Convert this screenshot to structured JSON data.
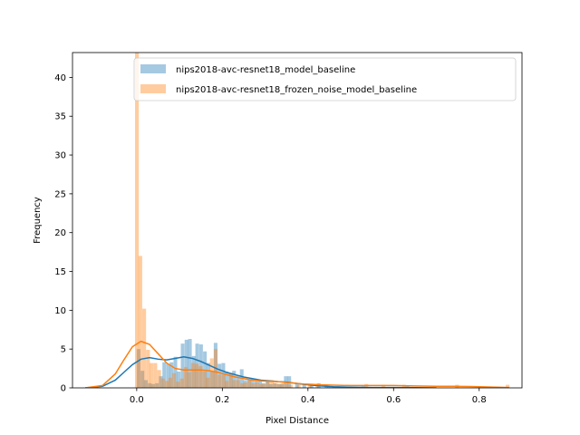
{
  "chart_data": {
    "type": "histogram",
    "xlabel": "Pixel Distance",
    "ylabel": "Frequency",
    "xlim": [
      -0.15,
      0.9
    ],
    "ylim": [
      0,
      43.2
    ],
    "xticks": [
      0.0,
      0.2,
      0.4,
      0.6,
      0.8
    ],
    "xtick_labels": [
      "0.0",
      "0.2",
      "0.4",
      "0.6",
      "0.8"
    ],
    "yticks": [
      0,
      5,
      10,
      15,
      20,
      25,
      30,
      35,
      40
    ],
    "ytick_labels": [
      "0",
      "5",
      "10",
      "15",
      "20",
      "25",
      "30",
      "35",
      "40"
    ],
    "grid": false,
    "legend_position": "top-right",
    "series": [
      {
        "name": "nips2018-avc-resnet18_model_baseline",
        "color": "#1f77b4",
        "bin_width": 0.0086,
        "bins": [
          [
            0.0,
            5.0
          ],
          [
            0.009,
            2.2
          ],
          [
            0.017,
            1.0
          ],
          [
            0.026,
            0.6
          ],
          [
            0.034,
            0.5
          ],
          [
            0.043,
            0.6
          ],
          [
            0.052,
            1.5
          ],
          [
            0.06,
            3.3
          ],
          [
            0.069,
            3.1
          ],
          [
            0.077,
            3.3
          ],
          [
            0.086,
            4.0
          ],
          [
            0.094,
            2.1
          ],
          [
            0.103,
            5.7
          ],
          [
            0.112,
            6.2
          ],
          [
            0.12,
            6.3
          ],
          [
            0.129,
            4.1
          ],
          [
            0.137,
            5.7
          ],
          [
            0.146,
            5.6
          ],
          [
            0.155,
            4.7
          ],
          [
            0.163,
            3.2
          ],
          [
            0.172,
            2.1
          ],
          [
            0.18,
            5.8
          ],
          [
            0.189,
            3.1
          ],
          [
            0.198,
            3.2
          ],
          [
            0.206,
            2.1
          ],
          [
            0.215,
            1.9
          ],
          [
            0.223,
            2.2
          ],
          [
            0.232,
            1.6
          ],
          [
            0.241,
            2.4
          ],
          [
            0.249,
            1.0
          ],
          [
            0.258,
            1.0
          ],
          [
            0.266,
            1.2
          ],
          [
            0.275,
            0.9
          ],
          [
            0.284,
            1.0
          ],
          [
            0.292,
            0.6
          ],
          [
            0.301,
            0.9
          ],
          [
            0.309,
            0.5
          ],
          [
            0.318,
            0.6
          ],
          [
            0.327,
            0.5
          ],
          [
            0.335,
            0.5
          ],
          [
            0.344,
            1.5
          ],
          [
            0.352,
            1.5
          ],
          [
            0.37,
            0.6
          ],
          [
            0.387,
            0.4
          ],
          [
            0.404,
            0.4
          ],
          [
            0.421,
            0.6
          ],
          [
            0.439,
            0.4
          ],
          [
            0.525,
            0.2
          ],
          [
            0.628,
            0.2
          ]
        ],
        "kde": [
          [
            -0.12,
            0.0
          ],
          [
            -0.08,
            0.2
          ],
          [
            -0.05,
            1.0
          ],
          [
            -0.03,
            2.0
          ],
          [
            -0.01,
            3.0
          ],
          [
            0.01,
            3.7
          ],
          [
            0.03,
            3.9
          ],
          [
            0.05,
            3.7
          ],
          [
            0.07,
            3.6
          ],
          [
            0.09,
            3.8
          ],
          [
            0.11,
            4.0
          ],
          [
            0.13,
            3.8
          ],
          [
            0.15,
            3.4
          ],
          [
            0.17,
            2.9
          ],
          [
            0.19,
            2.4
          ],
          [
            0.21,
            2.0
          ],
          [
            0.23,
            1.7
          ],
          [
            0.25,
            1.4
          ],
          [
            0.27,
            1.2
          ],
          [
            0.29,
            1.0
          ],
          [
            0.31,
            0.9
          ],
          [
            0.33,
            0.8
          ],
          [
            0.35,
            0.75
          ],
          [
            0.37,
            0.6
          ],
          [
            0.39,
            0.45
          ],
          [
            0.41,
            0.35
          ],
          [
            0.43,
            0.25
          ],
          [
            0.46,
            0.15
          ],
          [
            0.5,
            0.08
          ],
          [
            0.55,
            0.05
          ],
          [
            0.6,
            0.05
          ],
          [
            0.65,
            0.03
          ],
          [
            0.7,
            0.0
          ]
        ]
      },
      {
        "name": "nips2018-avc-resnet18_frozen_noise_model_baseline",
        "color": "#ff7f0e",
        "bin_width": 0.0088,
        "bins": [
          [
            -0.004,
            43.2
          ],
          [
            0.004,
            17.0
          ],
          [
            0.013,
            10.2
          ],
          [
            0.022,
            4.9
          ],
          [
            0.03,
            3.2
          ],
          [
            0.039,
            3.2
          ],
          [
            0.048,
            2.3
          ],
          [
            0.057,
            1.2
          ],
          [
            0.066,
            0.9
          ],
          [
            0.074,
            1.3
          ],
          [
            0.083,
            1.9
          ],
          [
            0.092,
            0.8
          ],
          [
            0.101,
            1.2
          ],
          [
            0.11,
            2.7
          ],
          [
            0.118,
            2.0
          ],
          [
            0.127,
            3.2
          ],
          [
            0.136,
            3.1
          ],
          [
            0.145,
            2.8
          ],
          [
            0.154,
            2.1
          ],
          [
            0.162,
            1.3
          ],
          [
            0.171,
            3.8
          ],
          [
            0.18,
            5.0
          ],
          [
            0.189,
            1.7
          ],
          [
            0.198,
            1.7
          ],
          [
            0.206,
            0.9
          ],
          [
            0.215,
            1.9
          ],
          [
            0.224,
            1.0
          ],
          [
            0.233,
            1.0
          ],
          [
            0.242,
            0.6
          ],
          [
            0.25,
            0.7
          ],
          [
            0.259,
            1.0
          ],
          [
            0.268,
            0.6
          ],
          [
            0.277,
            0.7
          ],
          [
            0.286,
            0.5
          ],
          [
            0.294,
            0.5
          ],
          [
            0.303,
            0.9
          ],
          [
            0.312,
            1.0
          ],
          [
            0.321,
            0.6
          ],
          [
            0.33,
            0.5
          ],
          [
            0.338,
            0.6
          ],
          [
            0.347,
            0.5
          ],
          [
            0.356,
            0.4
          ],
          [
            0.374,
            0.4
          ],
          [
            0.4,
            0.4
          ],
          [
            0.418,
            0.5
          ],
          [
            0.444,
            0.2
          ],
          [
            0.532,
            0.5
          ],
          [
            0.572,
            0.4
          ],
          [
            0.62,
            0.4
          ],
          [
            0.744,
            0.4
          ],
          [
            0.862,
            0.4
          ]
        ],
        "kde": [
          [
            -0.12,
            0.0
          ],
          [
            -0.08,
            0.3
          ],
          [
            -0.05,
            1.8
          ],
          [
            -0.03,
            3.6
          ],
          [
            -0.01,
            5.3
          ],
          [
            0.01,
            6.0
          ],
          [
            0.03,
            5.6
          ],
          [
            0.05,
            4.4
          ],
          [
            0.07,
            3.2
          ],
          [
            0.09,
            2.5
          ],
          [
            0.11,
            2.3
          ],
          [
            0.13,
            2.3
          ],
          [
            0.15,
            2.3
          ],
          [
            0.17,
            2.2
          ],
          [
            0.19,
            2.0
          ],
          [
            0.21,
            1.7
          ],
          [
            0.23,
            1.4
          ],
          [
            0.25,
            1.2
          ],
          [
            0.27,
            1.0
          ],
          [
            0.29,
            0.9
          ],
          [
            0.31,
            0.85
          ],
          [
            0.33,
            0.8
          ],
          [
            0.35,
            0.7
          ],
          [
            0.37,
            0.6
          ],
          [
            0.39,
            0.5
          ],
          [
            0.41,
            0.45
          ],
          [
            0.43,
            0.4
          ],
          [
            0.46,
            0.35
          ],
          [
            0.5,
            0.3
          ],
          [
            0.55,
            0.3
          ],
          [
            0.6,
            0.3
          ],
          [
            0.65,
            0.25
          ],
          [
            0.7,
            0.2
          ],
          [
            0.74,
            0.2
          ],
          [
            0.78,
            0.18
          ],
          [
            0.82,
            0.12
          ],
          [
            0.87,
            0.05
          ]
        ]
      }
    ]
  }
}
